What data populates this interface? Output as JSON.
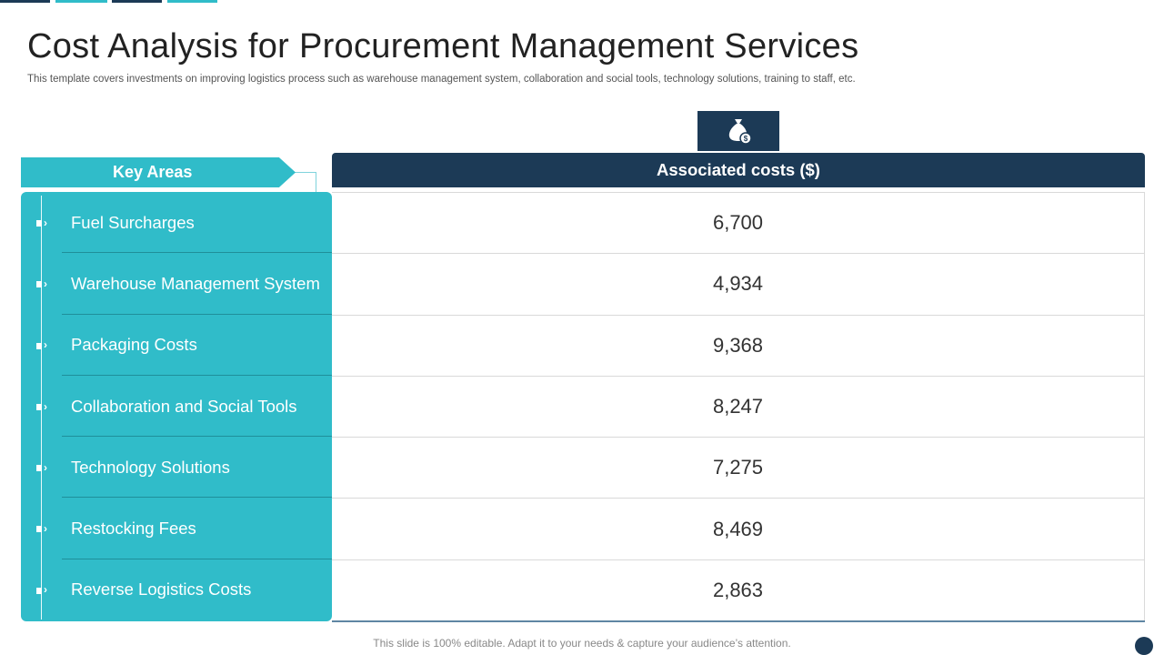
{
  "title": "Cost Analysis for Procurement Management Services",
  "subtitle": "This template covers investments on improving logistics process such as warehouse management system, collaboration and social tools, technology solutions, training to staff, etc.",
  "key_areas_header": "Key Areas",
  "costs_header": "Associated costs ($)",
  "rows": [
    {
      "area": "Fuel Surcharges",
      "cost": "6,700"
    },
    {
      "area": "Warehouse Management System",
      "cost": "4,934"
    },
    {
      "area": "Packaging Costs",
      "cost": "9,368"
    },
    {
      "area": "Collaboration and Social Tools",
      "cost": "8,247"
    },
    {
      "area": "Technology Solutions",
      "cost": "7,275"
    },
    {
      "area": "Restocking Fees",
      "cost": "8,469"
    },
    {
      "area": "Reverse Logistics Costs",
      "cost": "2,863"
    }
  ],
  "footer": "This slide is 100% editable. Adapt it to your needs & capture your audience’s attention.",
  "icons": {
    "header": "money-bag-icon",
    "bullet": "arrow-bullet-icon"
  },
  "colors": {
    "navy": "#1c3a56",
    "teal": "#30bcc9",
    "divider": "#1f8f9a",
    "grid": "#d9d9d9"
  }
}
